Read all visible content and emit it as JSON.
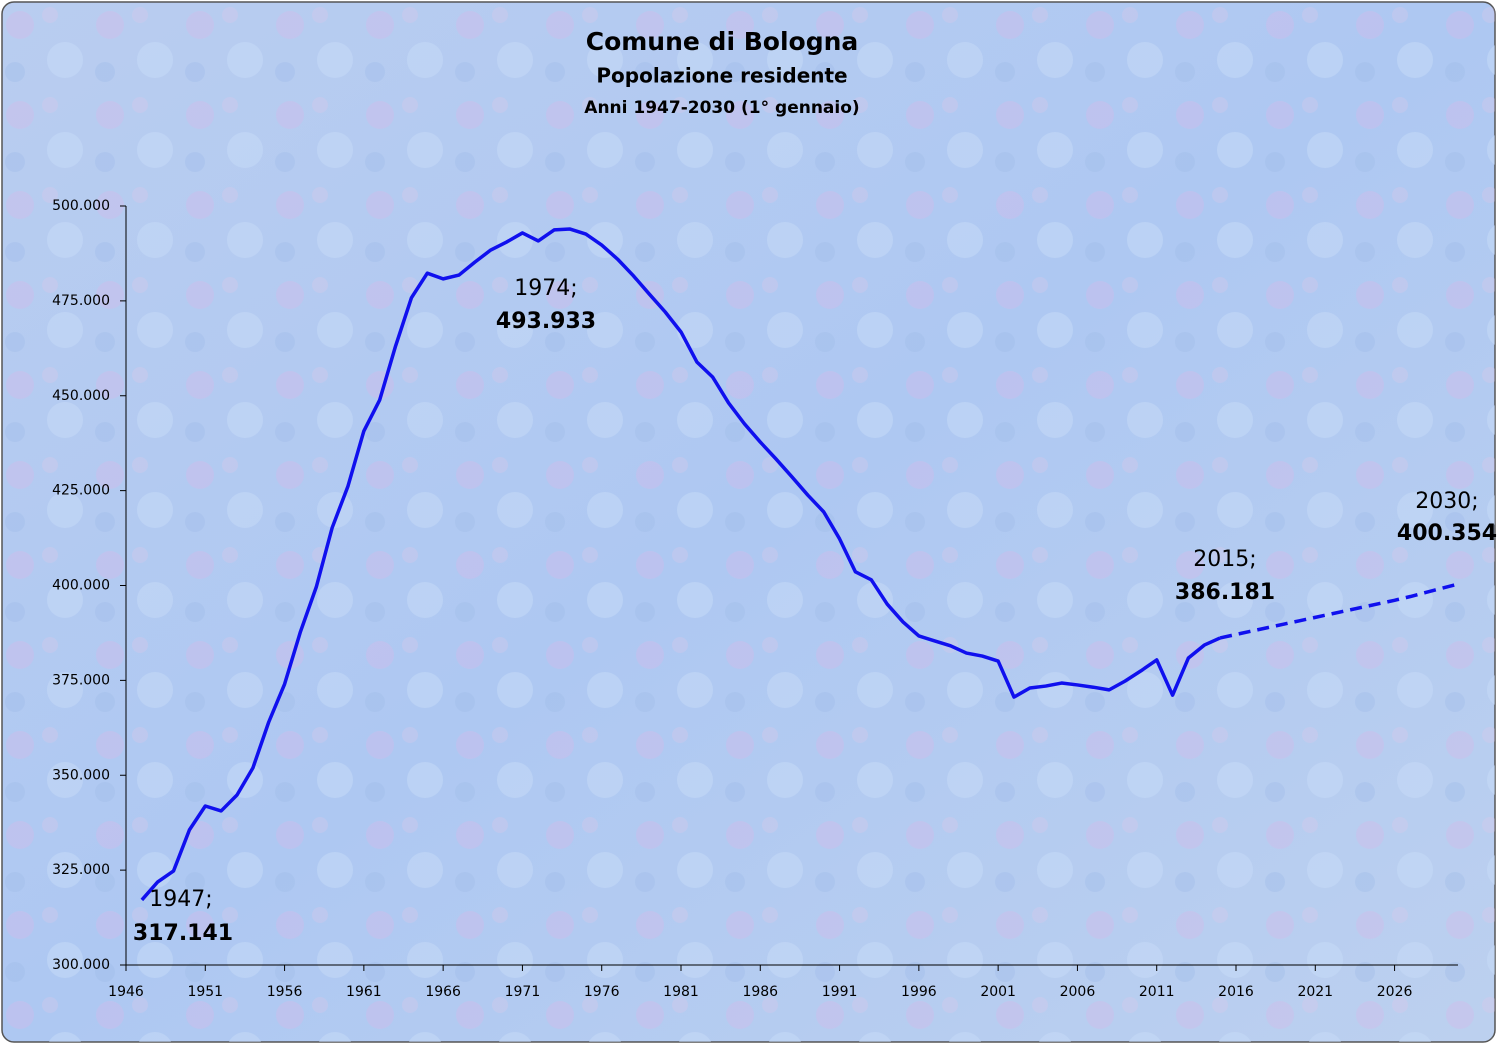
{
  "chart_data": {
    "type": "line",
    "title": "Comune di Bologna",
    "subtitle": "Popolazione residente",
    "subtitle2": "Anni 1947-2030 (1° gennaio)",
    "x": [
      1947,
      1948,
      1949,
      1950,
      1951,
      1952,
      1953,
      1954,
      1955,
      1956,
      1957,
      1958,
      1959,
      1960,
      1961,
      1962,
      1963,
      1964,
      1965,
      1966,
      1967,
      1968,
      1969,
      1970,
      1971,
      1972,
      1973,
      1974,
      1975,
      1976,
      1977,
      1978,
      1979,
      1980,
      1981,
      1982,
      1983,
      1984,
      1985,
      1986,
      1987,
      1988,
      1989,
      1990,
      1991,
      1992,
      1993,
      1994,
      1995,
      1996,
      1997,
      1998,
      1999,
      2000,
      2001,
      2002,
      2003,
      2004,
      2005,
      2006,
      2007,
      2008,
      2009,
      2010,
      2011,
      2012,
      2013,
      2014,
      2015,
      2016,
      2017,
      2018,
      2019,
      2020,
      2021,
      2022,
      2023,
      2024,
      2025,
      2026,
      2027,
      2028,
      2029,
      2030
    ],
    "series": [
      {
        "color": "#1010ee",
        "dashed": false,
        "values": [
          317141,
          321900,
          324800,
          335600,
          341900,
          340600,
          344800,
          351900,
          364000,
          374000,
          387800,
          399600,
          415200,
          426200,
          440700,
          448900,
          463100,
          475800,
          482300,
          480800,
          481800,
          485200,
          488400,
          490500,
          492900,
          490800,
          493700,
          493933,
          492600,
          489700,
          486000,
          481600,
          476800,
          472100,
          466800,
          458900,
          454900,
          448100,
          442600,
          437800,
          433300,
          428600,
          423800,
          419400,
          412300,
          403600,
          401500,
          395100,
          390400,
          386700,
          385400,
          384100,
          382200,
          381400,
          380100,
          370600,
          373000,
          373500,
          374300,
          373800,
          373200,
          372500,
          374800,
          377500,
          380400,
          371100,
          380900,
          384300,
          386181,
          null,
          null,
          null,
          null,
          null,
          null,
          null,
          null,
          null,
          null,
          null,
          null,
          null,
          null,
          null
        ]
      },
      {
        "color": "#1010ee",
        "dashed": true,
        "values": [
          null,
          null,
          null,
          null,
          null,
          null,
          null,
          null,
          null,
          null,
          null,
          null,
          null,
          null,
          null,
          null,
          null,
          null,
          null,
          null,
          null,
          null,
          null,
          null,
          null,
          null,
          null,
          null,
          null,
          null,
          null,
          null,
          null,
          null,
          null,
          null,
          null,
          null,
          null,
          null,
          null,
          null,
          null,
          null,
          null,
          null,
          null,
          null,
          null,
          null,
          null,
          null,
          null,
          null,
          null,
          null,
          null,
          null,
          null,
          null,
          null,
          null,
          null,
          null,
          null,
          null,
          null,
          null,
          386181,
          387100,
          388000,
          388900,
          389800,
          390700,
          391600,
          392500,
          393400,
          394300,
          395200,
          396100,
          397100,
          398200,
          399300,
          400354
        ]
      }
    ],
    "xlim": [
      1946,
      2030
    ],
    "xticks": [
      1946,
      1951,
      1956,
      1961,
      1966,
      1971,
      1976,
      1981,
      1986,
      1991,
      1996,
      2001,
      2006,
      2011,
      2016,
      2021,
      2026
    ],
    "ylim": [
      300000,
      500000
    ],
    "yticks": [
      {
        "value": 300000,
        "label": "300.000"
      },
      {
        "value": 325000,
        "label": "325.000"
      },
      {
        "value": 350000,
        "label": "350.000"
      },
      {
        "value": 375000,
        "label": "375.000"
      },
      {
        "value": 400000,
        "label": "400.000"
      },
      {
        "value": 425000,
        "label": "425.000"
      },
      {
        "value": 450000,
        "label": "450.000"
      },
      {
        "value": 475000,
        "label": "475.000"
      },
      {
        "value": 500000,
        "label": "500.000"
      }
    ],
    "annotations": [
      {
        "year": "1947;",
        "value": "317.141"
      },
      {
        "year": "1974;",
        "value": "493.933"
      },
      {
        "year": "2015;",
        "value": "386.181"
      },
      {
        "year": "2030;",
        "value": "400.354"
      }
    ]
  }
}
